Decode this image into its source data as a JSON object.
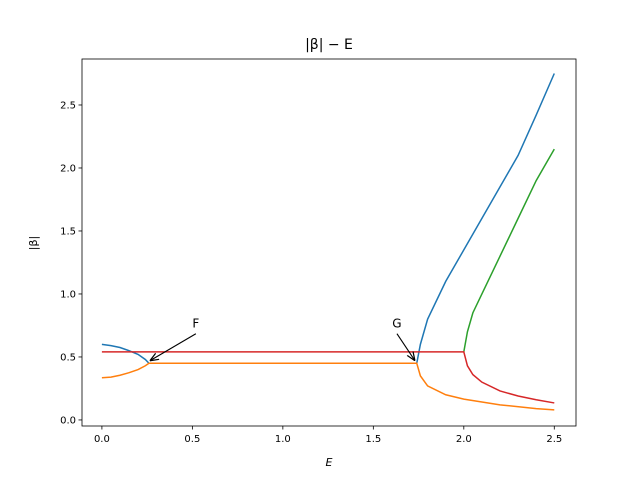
{
  "chart_data": {
    "type": "line",
    "title": "|β| − E",
    "x_label": "E",
    "y_label": "|β|",
    "xlim": [
      -0.11,
      2.62
    ],
    "ylim": [
      -0.048,
      2.865
    ],
    "xticks": [
      {
        "value": 0,
        "label": "0.0"
      },
      {
        "value": 0.5,
        "label": "0.5"
      },
      {
        "value": 1,
        "label": "1.0"
      },
      {
        "value": 1.5,
        "label": "1.5"
      },
      {
        "value": 2,
        "label": "2.0"
      },
      {
        "value": 2.5,
        "label": "2.5"
      }
    ],
    "yticks": [
      {
        "value": 0,
        "label": "0.0"
      },
      {
        "value": 0.5,
        "label": "0.5"
      },
      {
        "value": 1,
        "label": "1.0"
      },
      {
        "value": 1.5,
        "label": "1.5"
      },
      {
        "value": 2,
        "label": "2.0"
      },
      {
        "value": 2.5,
        "label": "2.5"
      }
    ],
    "grid": false,
    "series": [
      {
        "color": "#1f77b4",
        "x": [
          0,
          0.05,
          0.1,
          0.15,
          0.2,
          0.24,
          0.26,
          null,
          1.74,
          1.76,
          1.8,
          1.9,
          2.0,
          2.1,
          2.2,
          2.3,
          2.4,
          2.5
        ],
        "values": [
          0.6,
          0.59,
          0.575,
          0.55,
          0.52,
          0.48,
          0.45,
          null,
          0.45,
          0.6,
          0.8,
          1.1,
          1.35,
          1.6,
          1.85,
          2.1,
          2.42,
          2.75
        ]
      },
      {
        "color": "#ff7f0e",
        "x": [
          0,
          0.05,
          0.1,
          0.15,
          0.2,
          0.24,
          0.26,
          1.74,
          1.76,
          1.8,
          1.9,
          2.0,
          2.2,
          2.4,
          2.5
        ],
        "values": [
          0.335,
          0.34,
          0.355,
          0.375,
          0.4,
          0.43,
          0.45,
          0.45,
          0.35,
          0.27,
          0.2,
          0.165,
          0.12,
          0.09,
          0.08
        ]
      },
      {
        "color": "#2ca02c",
        "x": [
          2.0,
          2.02,
          2.05,
          2.1,
          2.2,
          2.3,
          2.4,
          2.5
        ],
        "values": [
          0.54,
          0.7,
          0.85,
          1.0,
          1.3,
          1.6,
          1.9,
          2.15
        ]
      },
      {
        "color": "#d62728",
        "x": [
          0,
          2.0,
          2.02,
          2.05,
          2.1,
          2.2,
          2.3,
          2.4,
          2.5
        ],
        "values": [
          0.54,
          0.54,
          0.43,
          0.36,
          0.3,
          0.23,
          0.19,
          0.16,
          0.135
        ]
      }
    ],
    "annotations": [
      {
        "text": "F",
        "x": 0.265,
        "y": 0.47
      },
      {
        "text": "G",
        "x": 1.73,
        "y": 0.47
      }
    ]
  }
}
